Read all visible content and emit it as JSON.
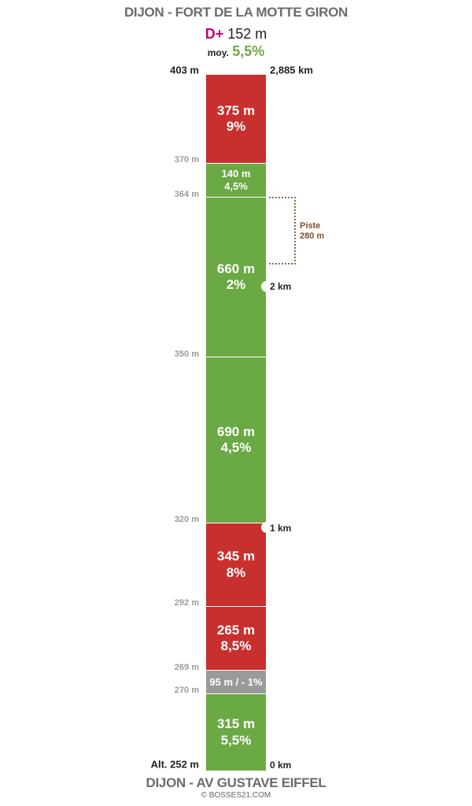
{
  "header": {
    "title": "DIJON - FORT DE LA MOTTE GIRON",
    "dplus_label": "D+",
    "dplus_value": "152 m",
    "avg_label": "moy.",
    "avg_value": "5,5%"
  },
  "footer": {
    "title": "DIJON - AV GUSTAVE EIFFEL",
    "credit": "© BOSSES21.COM"
  },
  "profile": {
    "top_altitude": "403 m",
    "bottom_altitude": "Alt. 252 m",
    "total_distance": "2,885 km",
    "segments": [
      {
        "distance": "375 m",
        "grade": "9%",
        "color": "red"
      },
      {
        "distance": "140 m",
        "grade": "4,5%",
        "color": "green"
      },
      {
        "distance": "660 m",
        "grade": "2%",
        "color": "green"
      },
      {
        "distance": "690 m",
        "grade": "4,5%",
        "color": "green"
      },
      {
        "distance": "345 m",
        "grade": "8%",
        "color": "red"
      },
      {
        "distance": "265 m",
        "grade": "8,5%",
        "color": "red"
      },
      {
        "label": "95 m / - 1%",
        "color": "grey"
      },
      {
        "distance": "315 m",
        "grade": "5,5%",
        "color": "green"
      }
    ],
    "altitude_marks": [
      "370 m",
      "364 m",
      "350 m",
      "320 m",
      "292 m",
      "269 m",
      "270 m"
    ],
    "km_marks": [
      "2 km",
      "1 km",
      "0 km"
    ],
    "piste": {
      "label": "Piste",
      "length": "280 m"
    }
  },
  "colors": {
    "red": "#c8302e",
    "green": "#6aa944",
    "grey": "#9a9a9a",
    "dplus": "#c3007a"
  }
}
